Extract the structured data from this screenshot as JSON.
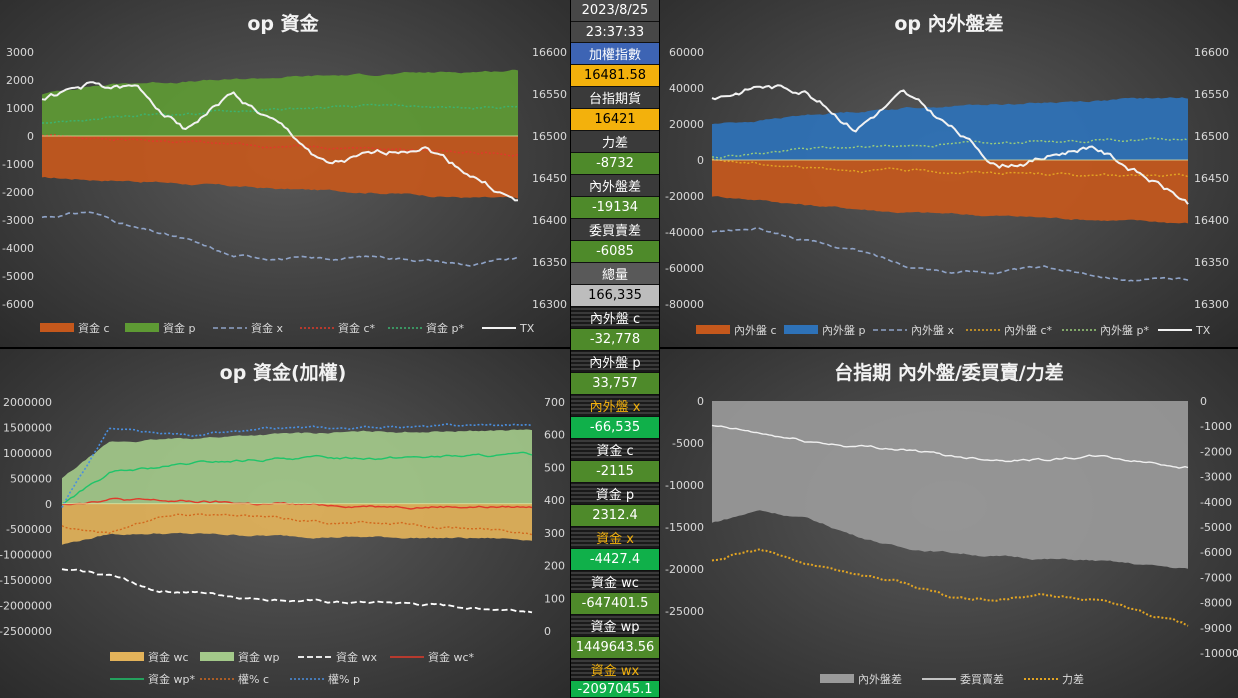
{
  "sidebar": {
    "date": "2023/8/25",
    "time": "23:37:33",
    "items": [
      {
        "label": "加權指數",
        "value": "16481.58"
      },
      {
        "label": "台指期貨",
        "value": "16421"
      },
      {
        "label": "力差",
        "value": "-8732"
      },
      {
        "label": "內外盤差",
        "value": "-19134"
      },
      {
        "label": "委買賣差",
        "value": "-6085"
      },
      {
        "label": "總量",
        "value": "166,335"
      },
      {
        "label": "內外盤 c",
        "value": "-32,778"
      },
      {
        "label": "內外盤 p",
        "value": "33,757"
      },
      {
        "label": "內外盤 x",
        "value": "-66,535"
      },
      {
        "label": "資金 c",
        "value": "-2115"
      },
      {
        "label": "資金 p",
        "value": "2312.4"
      },
      {
        "label": "資金 x",
        "value": "-4427.4"
      },
      {
        "label": "資金 wc",
        "value": "-647401.5"
      },
      {
        "label": "資金 wp",
        "value": "1449643.56"
      },
      {
        "label": "資金 wx",
        "value": "-2097045.1"
      }
    ]
  },
  "colors": {
    "orange": "#c5581c",
    "green": "#5e9a34",
    "blue": "#2e72b8",
    "gold": "#e3a522",
    "lightgreen": "#a3c98a",
    "gray": "#9a9a9a"
  },
  "chart_data": [
    {
      "type": "area",
      "title": "op 資金",
      "ylim": [
        -6000,
        3000
      ],
      "y2lim": [
        16300,
        16600
      ],
      "yticks": [
        "3000",
        "2000",
        "1000",
        "0",
        "-1000",
        "-2000",
        "-3000",
        "-4000",
        "-5000",
        "-6000"
      ],
      "y2ticks": [
        "16600",
        "16550",
        "16500",
        "16450",
        "16400",
        "16350",
        "16300"
      ],
      "legend": [
        "資金 c",
        "資金 p",
        "資金 x",
        "資金 c*",
        "資金 p*",
        "TX"
      ],
      "series": [
        {
          "name": "資金 c",
          "axis": "left",
          "values": [
            -1500,
            -1550,
            -1600,
            -1700,
            -1800,
            -1900,
            -1950,
            -2000,
            -2100,
            -2200,
            -2250
          ]
        },
        {
          "name": "資金 p",
          "axis": "left",
          "values": [
            1500,
            1800,
            1900,
            1950,
            2000,
            2100,
            2150,
            2200,
            2250,
            2300,
            2350
          ]
        },
        {
          "name": "資金 x",
          "axis": "left",
          "values": [
            -2900,
            -2700,
            -3300,
            -3700,
            -4300,
            -4350,
            -4400,
            -4300,
            -4400,
            -4600,
            -4400
          ]
        },
        {
          "name": "資金 c*",
          "axis": "left",
          "values": [
            0,
            -100,
            -150,
            -200,
            -300,
            -350,
            -350,
            -400,
            -500,
            -550,
            -700
          ]
        },
        {
          "name": "資金 p*",
          "axis": "left",
          "values": [
            500,
            600,
            700,
            800,
            900,
            950,
            1000,
            1050,
            1050,
            1000,
            1050
          ]
        },
        {
          "name": "TX",
          "axis": "right",
          "values": [
            16545,
            16560,
            16555,
            16510,
            16550,
            16510,
            16465,
            16475,
            16490,
            16455,
            16420
          ]
        }
      ]
    },
    {
      "type": "area",
      "title": "op 內外盤差",
      "ylim": [
        -80000,
        60000
      ],
      "y2lim": [
        16300,
        16600
      ],
      "yticks": [
        "60000",
        "40000",
        "20000",
        "0",
        "-20000",
        "-40000",
        "-60000",
        "-80000"
      ],
      "y2ticks": [
        "16600",
        "16550",
        "16500",
        "16450",
        "16400",
        "16350",
        "16300"
      ],
      "legend": [
        "內外盤 c",
        "內外盤 p",
        "內外盤 x",
        "內外盤 c*",
        "內外盤 p*",
        "TX"
      ],
      "series": [
        {
          "name": "內外盤 c",
          "axis": "left",
          "values": [
            -20000,
            -22000,
            -25000,
            -27000,
            -29000,
            -30000,
            -31000,
            -32000,
            -33000,
            -34000,
            -35000
          ]
        },
        {
          "name": "內外盤 p",
          "axis": "left",
          "values": [
            20000,
            22000,
            25000,
            27000,
            29000,
            30000,
            31000,
            32000,
            33000,
            34000,
            34500
          ]
        },
        {
          "name": "內外盤 x",
          "axis": "left",
          "values": [
            -40000,
            -38000,
            -45000,
            -50000,
            -58000,
            -62000,
            -62000,
            -60000,
            -63000,
            -67000,
            -66000
          ]
        },
        {
          "name": "內外盤 c*",
          "axis": "left",
          "values": [
            0,
            -2000,
            -4000,
            -5000,
            -6000,
            -6500,
            -7000,
            -7500,
            -8500,
            -9000,
            -9500
          ]
        },
        {
          "name": "內外盤 p*",
          "axis": "left",
          "values": [
            2000,
            4000,
            6000,
            7000,
            8000,
            9000,
            10000,
            10500,
            11000,
            11500,
            12000
          ]
        },
        {
          "name": "TX",
          "axis": "right",
          "values": [
            16545,
            16560,
            16555,
            16510,
            16550,
            16510,
            16465,
            16475,
            16490,
            16455,
            16420
          ]
        }
      ]
    },
    {
      "type": "area",
      "title": "op 資金(加權)",
      "ylim": [
        -2500000,
        2000000
      ],
      "y2lim": [
        0,
        700
      ],
      "yticks": [
        "2000000",
        "1500000",
        "1000000",
        "500000",
        "0",
        "-500000",
        "-1000000",
        "-1500000",
        "-2000000",
        "-2500000"
      ],
      "y2ticks": [
        "700",
        "600",
        "500",
        "400",
        "300",
        "200",
        "100",
        "0"
      ],
      "legend": [
        "資金 wc",
        "資金 wp",
        "資金 wx",
        "資金 wc*",
        "資金 wp*",
        "權% c",
        "權% p"
      ],
      "series": [
        {
          "name": "資金 wc",
          "axis": "left",
          "values": [
            -800000,
            -600000,
            -580000,
            -600000,
            -620000,
            -640000,
            -650000,
            -660000,
            -670000,
            -680000,
            -700000
          ]
        },
        {
          "name": "資金 wp",
          "axis": "left",
          "values": [
            500000,
            1200000,
            1250000,
            1300000,
            1350000,
            1380000,
            1400000,
            1420000,
            1430000,
            1440000,
            1450000
          ]
        },
        {
          "name": "資金 wx",
          "axis": "left",
          "values": [
            -1300000,
            -1400000,
            -1700000,
            -1750000,
            -1850000,
            -1900000,
            -1950000,
            -1950000,
            -2000000,
            -2050000,
            -2100000
          ]
        },
        {
          "name": "資金 wc*",
          "axis": "left",
          "values": [
            0,
            100000,
            50000,
            30000,
            0,
            -20000,
            -30000,
            -40000,
            -50000,
            -60000,
            -70000
          ]
        },
        {
          "name": "資金 wp*",
          "axis": "left",
          "values": [
            0,
            600000,
            700000,
            800000,
            850000,
            900000,
            900000,
            920000,
            930000,
            940000,
            950000
          ]
        },
        {
          "name": "權% c",
          "axis": "right",
          "values": [
            320,
            300,
            350,
            360,
            350,
            340,
            330,
            330,
            320,
            310,
            300
          ]
        },
        {
          "name": "權% p",
          "axis": "right",
          "values": [
            380,
            620,
            600,
            600,
            610,
            620,
            620,
            625,
            625,
            630,
            630
          ]
        }
      ]
    },
    {
      "type": "area",
      "title": "台指期 內外盤/委買賣/力差",
      "ylim": [
        -30000,
        0
      ],
      "y2lim": [
        -10000,
        0
      ],
      "yticks": [
        "0",
        "-5000",
        "-10000",
        "-15000",
        "-20000",
        "-25000"
      ],
      "y2ticks": [
        "0",
        "-1000",
        "-2000",
        "-3000",
        "-4000",
        "-5000",
        "-6000",
        "-7000",
        "-8000",
        "-9000",
        "-10000"
      ],
      "legend": [
        "內外盤差",
        "委買賣差",
        "力差"
      ],
      "series": [
        {
          "name": "內外盤差",
          "axis": "left",
          "values": [
            -14500,
            -13000,
            -14000,
            -16000,
            -17500,
            -18000,
            -18500,
            -18800,
            -19000,
            -19500,
            -20000
          ]
        },
        {
          "name": "委買賣差",
          "axis": "right",
          "values": [
            -1000,
            -1300,
            -1600,
            -1800,
            -1900,
            -2200,
            -2300,
            -2300,
            -2200,
            -2400,
            -2600
          ]
        },
        {
          "name": "力差",
          "axis": "right",
          "values": [
            -6300,
            -5900,
            -6500,
            -6800,
            -7200,
            -7800,
            -7900,
            -7700,
            -7900,
            -8300,
            -8900
          ]
        }
      ]
    }
  ]
}
